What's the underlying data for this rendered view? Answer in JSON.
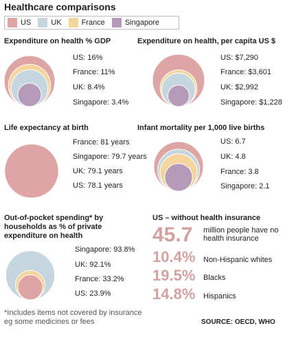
{
  "title": "Healthcare comparisons",
  "legend": [
    {
      "label": "US",
      "color": "#dea5a4"
    },
    {
      "label": "UK",
      "color": "#c5d6df"
    },
    {
      "label": "France",
      "color": "#f5d59b"
    },
    {
      "label": "Singapore",
      "color": "#b59ab9"
    }
  ],
  "colors": {
    "us": "#dea5a4",
    "uk": "#c5d6df",
    "france": "#f5d59b",
    "singapore": "#b59ab9",
    "big_text": "#d4a1a1"
  },
  "chart_data": [
    {
      "type": "bubble",
      "title": "Expenditure on health % GDP",
      "series": [
        {
          "name": "US",
          "value": 16,
          "label": "US: 16%"
        },
        {
          "name": "France",
          "value": 11,
          "label": "France: 11%"
        },
        {
          "name": "UK",
          "value": 8.4,
          "label": "UK: 8.4%"
        },
        {
          "name": "Singapore",
          "value": 3.4,
          "label": "Singapore: 3.4%"
        }
      ]
    },
    {
      "type": "bubble",
      "title": "Expenditure on health, per capita US $",
      "series": [
        {
          "name": "US",
          "value": 7290,
          "label": "US: $7,290"
        },
        {
          "name": "France",
          "value": 3601,
          "label": "France: $3,601"
        },
        {
          "name": "UK",
          "value": 2992,
          "label": "UK: $2,992"
        },
        {
          "name": "Singapore",
          "value": 1228,
          "label": "Singapore: $1,228"
        }
      ]
    },
    {
      "type": "bubble",
      "title": "Life expectancy at birth",
      "series": [
        {
          "name": "France",
          "value": 81,
          "label": "France: 81 years"
        },
        {
          "name": "Singapore",
          "value": 79.7,
          "label": "Singapore: 79.7 years"
        },
        {
          "name": "UK",
          "value": 79.1,
          "label": "UK: 79.1 years"
        },
        {
          "name": "US",
          "value": 78.1,
          "label": "US: 78.1 years"
        }
      ]
    },
    {
      "type": "bubble",
      "title": "Infant mortality per 1,000 live births",
      "series": [
        {
          "name": "US",
          "value": 6.7,
          "label": "US: 6.7"
        },
        {
          "name": "UK",
          "value": 4.8,
          "label": "UK: 4.8"
        },
        {
          "name": "France",
          "value": 3.8,
          "label": "France: 3.8"
        },
        {
          "name": "Singapore",
          "value": 2.1,
          "label": "Singapore: 2.1"
        }
      ]
    },
    {
      "type": "bubble",
      "title": "Out-of-pocket spending* by households as % of private expenditure on health",
      "series": [
        {
          "name": "Singapore",
          "value": 93.8,
          "label": "Singapore: 93.8%"
        },
        {
          "name": "UK",
          "value": 92.1,
          "label": "UK: 92.1%"
        },
        {
          "name": "France",
          "value": 33.2,
          "label": "France: 33.2%"
        },
        {
          "name": "US",
          "value": 23.9,
          "label": "US: 23.9%"
        }
      ]
    }
  ],
  "uninsured": {
    "title": "US – without health insurance",
    "headline_value": "45.7",
    "headline_text": "million people have no health insurance",
    "rows": [
      {
        "value": "10.4%",
        "label": "Non-Hispanic whites"
      },
      {
        "value": "19.5%",
        "label": "Blacks"
      },
      {
        "value": "14.8%",
        "label": "Hispanics"
      }
    ]
  },
  "footnote": "*Includes items not covered by insurance eg some medicines or fees",
  "source": "SOURCE: OECD, WHO"
}
